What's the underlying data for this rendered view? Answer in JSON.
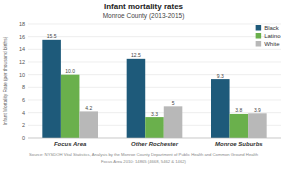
{
  "chart_data": {
    "type": "bar",
    "title": "Infant mortality rates",
    "subtitle": "Monroe County (2013-2015)",
    "y_label": "Infant Mortality Rate (per thousand births)",
    "categories": [
      "Focus Area",
      "Other Rochester",
      "Monroe Suburbs"
    ],
    "series": [
      {
        "name": "Black",
        "color": "#1e5a7a",
        "values": [
          15.5,
          12.5,
          9.3
        ]
      },
      {
        "name": "Latino",
        "color": "#6ab04c",
        "values": [
          10.0,
          3.3,
          3.8
        ],
        "value_labels": [
          "10.0",
          "3.3",
          "3.8"
        ]
      },
      {
        "name": "White",
        "color": "#b8b8b8",
        "values": [
          4.2,
          5.0,
          3.9
        ]
      }
    ],
    "ylim": [
      0,
      18
    ],
    "yticks": [
      0,
      2,
      4,
      6,
      8,
      10,
      12,
      14,
      16,
      18
    ],
    "grid": true,
    "legend": "upper right",
    "data_labels": true,
    "annotations": [
      "Source: NYSDOH Vital Statistics, Analysis by the Monroe County Department of Public Health and Common Ground Health",
      "Focus Area 2010: 14865 (4668, 5462 & 1462)"
    ]
  }
}
